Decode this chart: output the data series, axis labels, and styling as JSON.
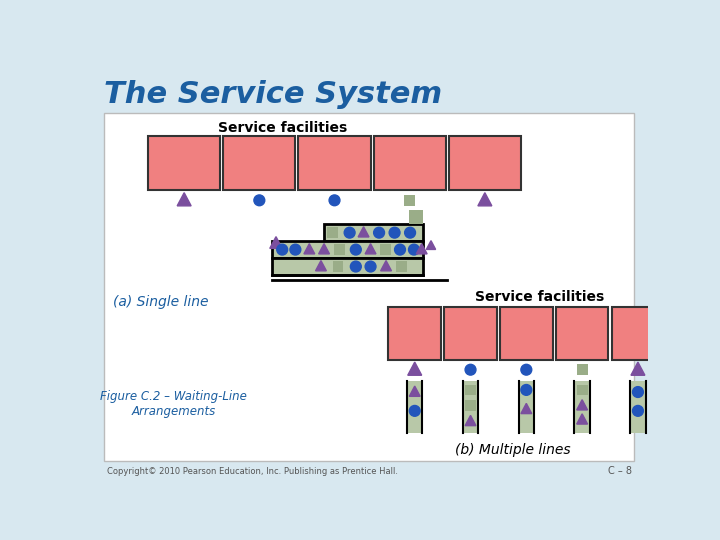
{
  "title": "The Service System",
  "title_color": "#1B5EA0",
  "bg_color": "#D8E8F0",
  "panel_color": "#FFFFFF",
  "service_box_color": "#F08080",
  "service_box_edge": "#333333",
  "queue_fill_color": "#B8C8A8",
  "triangle_color": "#7B4F9E",
  "circle_color": "#2255BB",
  "square_color": "#9AAD88",
  "label_single": "(a) Single line",
  "label_multiple": "(b) Multiple lines",
  "label_facilities_top": "Service facilities",
  "label_facilities_bottom": "Service facilities",
  "figure_label": "Figure C.2 – Waiting-Line\nArrangements",
  "copyright": "Copyright© 2010 Pearson Education, Inc. Publishing as Prentice Hall.",
  "page_label": "C – 8"
}
